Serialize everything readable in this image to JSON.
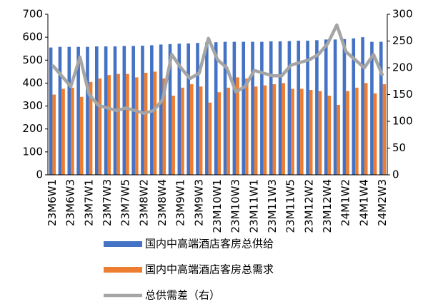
{
  "chart_data": {
    "type": "bar_line",
    "categories": [
      "23M6W1",
      null,
      "23M6W3",
      null,
      "23M7W1",
      null,
      "23M7W3",
      null,
      "23M7W5",
      null,
      "23M8W2",
      null,
      "23M8W4",
      null,
      "23M9W1",
      null,
      "23M9W3",
      null,
      "23M10W1",
      null,
      "23M10W3",
      null,
      "23M11W1",
      null,
      "23M11W3",
      null,
      "23M11W5",
      null,
      "23M12W2",
      null,
      "23M12W4",
      null,
      "24M1W2",
      null,
      "24M1W4",
      null,
      "24M2W3"
    ],
    "series": [
      {
        "name": "国内中高端酒店客房总供给",
        "color": "#4472c4",
        "kind": "bar",
        "values": [
          555,
          558,
          558,
          558,
          558,
          560,
          560,
          560,
          562,
          562,
          563,
          565,
          568,
          570,
          572,
          573,
          575,
          577,
          578,
          580,
          580,
          580,
          580,
          580,
          582,
          582,
          583,
          585,
          585,
          587,
          590,
          590,
          592,
          595,
          600,
          580,
          580
        ]
      },
      {
        "name": "国内中高端酒店客房总需求",
        "color": "#ed7d31",
        "kind": "bar",
        "values": [
          350,
          375,
          380,
          340,
          405,
          420,
          435,
          440,
          440,
          425,
          445,
          450,
          420,
          345,
          380,
          395,
          385,
          315,
          360,
          380,
          425,
          420,
          385,
          390,
          395,
          400,
          375,
          375,
          370,
          365,
          345,
          305,
          365,
          380,
          400,
          355,
          395
        ]
      },
      {
        "name": "总供需差（右）",
        "color": "#a5a5a5",
        "kind": "line",
        "axis": "y2",
        "values": [
          205,
          185,
          165,
          220,
          150,
          130,
          125,
          120,
          125,
          120,
          115,
          120,
          140,
          225,
          200,
          180,
          190,
          255,
          215,
          200,
          155,
          165,
          195,
          190,
          185,
          185,
          205,
          210,
          215,
          225,
          245,
          280,
          230,
          215,
          200,
          225,
          185
        ]
      }
    ],
    "ylim": [
      0,
      700
    ],
    "yticks": [
      0,
      100,
      200,
      300,
      400,
      500,
      600,
      700
    ],
    "y2lim": [
      0,
      300
    ],
    "y2ticks": [
      0,
      50,
      100,
      150,
      200,
      250,
      300
    ]
  }
}
